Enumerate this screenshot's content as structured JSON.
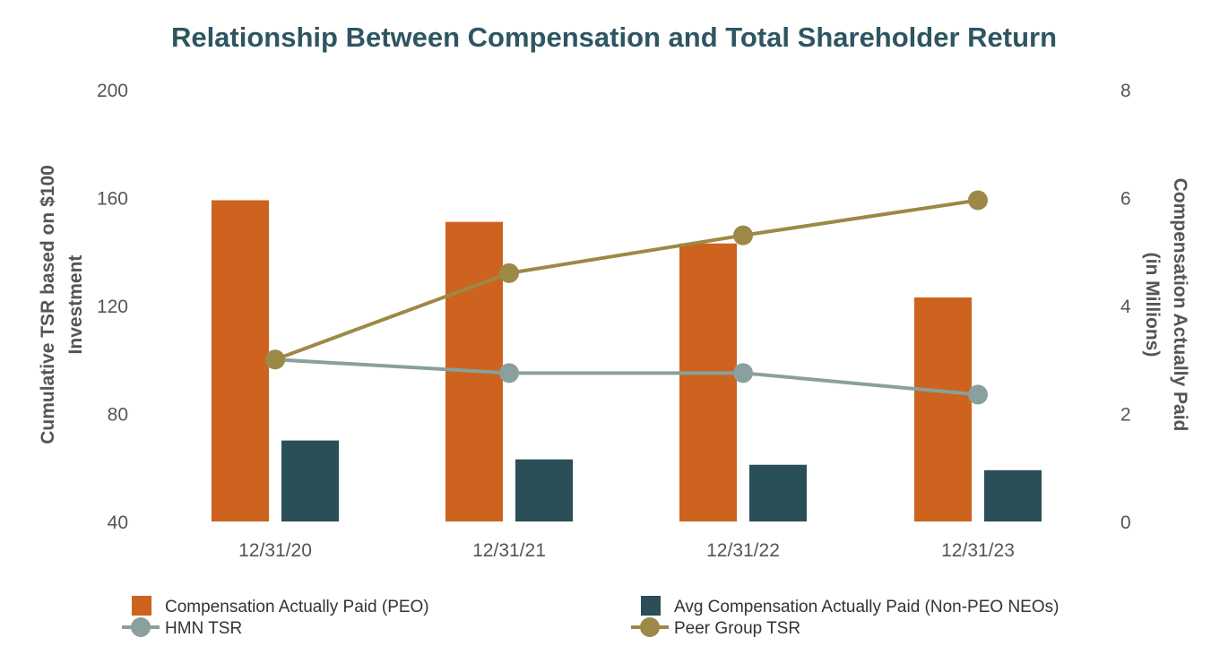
{
  "chart_data": {
    "type": "bar",
    "title": "Relationship Between Compensation and Total Shareholder Return",
    "categories": [
      "12/31/20",
      "12/31/21",
      "12/31/22",
      "12/31/23"
    ],
    "y_left": {
      "label_line1": "Cumulative TSR based on $100",
      "label_line2": "Investment",
      "ylim": [
        40,
        200
      ],
      "ticks": [
        "40",
        "80",
        "120",
        "160",
        "200"
      ]
    },
    "y_right": {
      "label_line1": "Compensation Actually Paid",
      "label_line2": "(in Millions)",
      "ylim": [
        0,
        8
      ],
      "ticks": [
        "0",
        "2",
        "4",
        "6",
        "8"
      ]
    },
    "grid": false,
    "legend_position": "bottom",
    "bar_series": [
      {
        "name": "Compensation Actually Paid (PEO)",
        "color": "#cd631e",
        "axis": "right",
        "values": [
          5.95,
          5.55,
          5.15,
          4.15
        ]
      },
      {
        "name": "Avg Compensation Actually Paid (Non-PEO NEOs)",
        "color": "#2a4f59",
        "axis": "right",
        "values": [
          1.5,
          1.15,
          1.05,
          0.95
        ]
      }
    ],
    "line_series": [
      {
        "name": "HMN TSR",
        "color": "#89a09d",
        "axis": "left",
        "values": [
          100,
          95,
          95,
          87
        ]
      },
      {
        "name": "Peer Group TSR",
        "color": "#9c8946",
        "axis": "left",
        "values": [
          100,
          132,
          146,
          159
        ]
      }
    ]
  }
}
